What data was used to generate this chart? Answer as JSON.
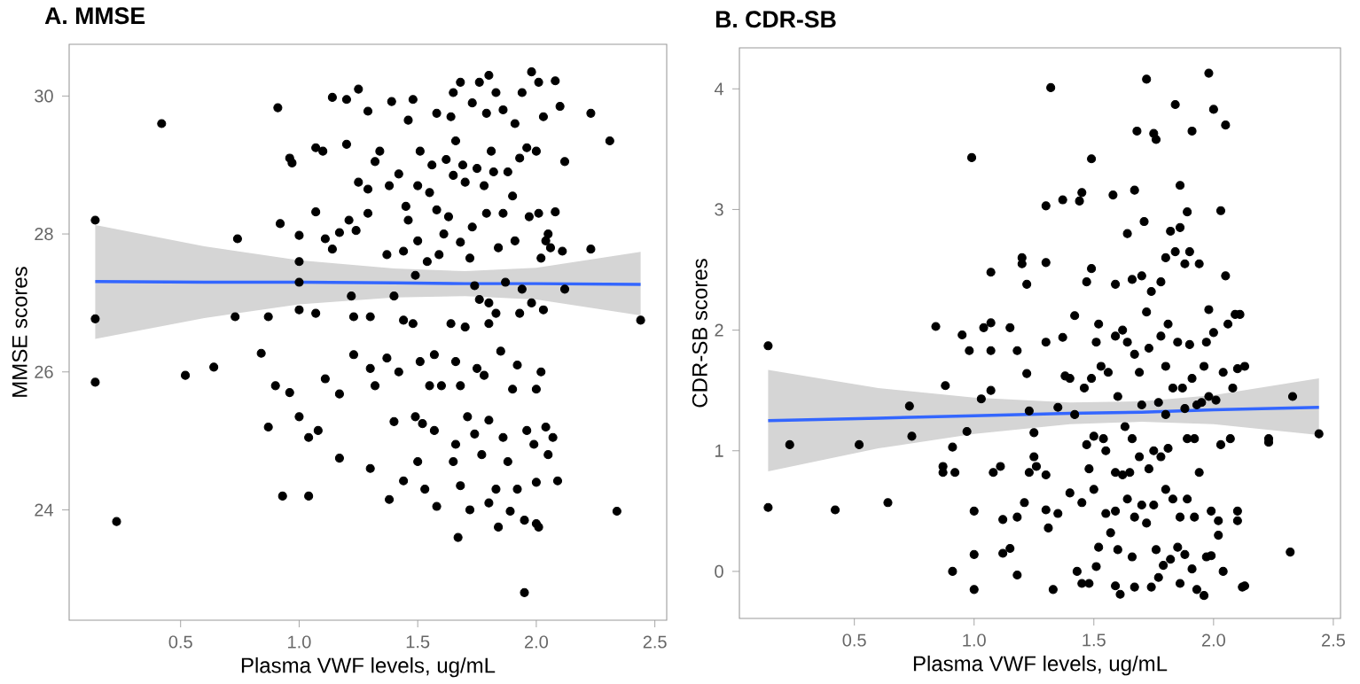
{
  "chart_data": [
    {
      "type": "scatter",
      "title": "A. MMSE",
      "xlabel": "Plasma VWF levels, ug/mL",
      "ylabel": "MMSE scores",
      "xlim": [
        0.03,
        2.55
      ],
      "ylim": [
        22.4,
        30.75
      ],
      "xticks": [
        {
          "value": 0.5,
          "label": "0.5"
        },
        {
          "value": 1.0,
          "label": "1.0"
        },
        {
          "value": 1.5,
          "label": "1.5"
        },
        {
          "value": 2.0,
          "label": "2.0"
        },
        {
          "value": 2.5,
          "label": "2.5"
        }
      ],
      "yticks": [
        24,
        26,
        28,
        30
      ],
      "series": [
        {
          "marker": "circle",
          "color": "#000000",
          "x": [
            0.14,
            0.14,
            0.14,
            0.23,
            0.42,
            0.52,
            0.64,
            0.73,
            0.74,
            0.84,
            0.87,
            0.87,
            0.9,
            0.91,
            0.92,
            0.93,
            0.96,
            0.96,
            0.97,
            1.0,
            1.0,
            1.0,
            1.0,
            1.0,
            1.04,
            1.04,
            1.07,
            1.07,
            1.07,
            1.08,
            1.1,
            1.11,
            1.11,
            1.14,
            1.14,
            1.17,
            1.17,
            1.17,
            1.2,
            1.2,
            1.21,
            1.22,
            1.23,
            1.23,
            1.24,
            1.25,
            1.25,
            1.29,
            1.29,
            1.29,
            1.3,
            1.3,
            1.3,
            1.32,
            1.32,
            1.34,
            1.37,
            1.37,
            1.38,
            1.38,
            1.39,
            1.4,
            1.4,
            1.42,
            1.42,
            1.44,
            1.44,
            1.44,
            1.45,
            1.46,
            1.46,
            1.48,
            1.48,
            1.49,
            1.49,
            1.5,
            1.5,
            1.5,
            1.51,
            1.51,
            1.52,
            1.53,
            1.54,
            1.55,
            1.55,
            1.56,
            1.57,
            1.57,
            1.58,
            1.58,
            1.58,
            1.59,
            1.6,
            1.61,
            1.62,
            1.63,
            1.64,
            1.64,
            1.65,
            1.65,
            1.65,
            1.66,
            1.66,
            1.66,
            1.67,
            1.68,
            1.68,
            1.68,
            1.68,
            1.69,
            1.7,
            1.7,
            1.71,
            1.72,
            1.72,
            1.73,
            1.73,
            1.74,
            1.74,
            1.75,
            1.75,
            1.76,
            1.76,
            1.77,
            1.78,
            1.78,
            1.79,
            1.79,
            1.8,
            1.8,
            1.8,
            1.8,
            1.8,
            1.81,
            1.82,
            1.83,
            1.83,
            1.83,
            1.84,
            1.84,
            1.85,
            1.86,
            1.86,
            1.86,
            1.87,
            1.88,
            1.88,
            1.89,
            1.9,
            1.9,
            1.91,
            1.91,
            1.92,
            1.92,
            1.93,
            1.93,
            1.94,
            1.94,
            1.95,
            1.95,
            1.96,
            1.96,
            1.97,
            1.98,
            1.98,
            1.99,
            2.0,
            2.0,
            2.0,
            2.0,
            2.01,
            2.01,
            2.01,
            2.02,
            2.02,
            2.03,
            2.03,
            2.04,
            2.04,
            2.05,
            2.05,
            2.06,
            2.07,
            2.08,
            2.08,
            2.09,
            2.1,
            2.11,
            2.12,
            2.12,
            2.23,
            2.23,
            2.31,
            2.34,
            2.44
          ],
          "values": [
            28.2,
            26.77,
            25.85,
            23.83,
            29.6,
            25.95,
            26.07,
            26.8,
            27.93,
            26.27,
            26.8,
            25.2,
            25.8,
            29.83,
            28.15,
            24.2,
            29.1,
            25.7,
            29.03,
            27.98,
            27.6,
            27.3,
            26.9,
            25.35,
            24.2,
            25.05,
            29.25,
            28.32,
            26.85,
            25.15,
            29.2,
            27.93,
            25.9,
            27.78,
            29.98,
            28.02,
            25.68,
            24.75,
            29.95,
            29.3,
            28.2,
            27.1,
            26.25,
            26.8,
            28.05,
            30.1,
            28.75,
            29.78,
            28.65,
            28.3,
            26.05,
            24.6,
            26.8,
            25.8,
            29.05,
            29.2,
            27.7,
            26.2,
            24.15,
            28.7,
            29.92,
            25.28,
            27.1,
            26.0,
            28.87,
            24.42,
            27.75,
            26.75,
            28.4,
            29.65,
            28.2,
            26.7,
            29.95,
            25.35,
            27.4,
            28.7,
            27.9,
            24.7,
            29.2,
            26.15,
            25.25,
            24.3,
            27.6,
            28.6,
            25.8,
            29.0,
            25.15,
            26.25,
            29.75,
            28.35,
            24.05,
            27.7,
            25.8,
            28.0,
            29.08,
            28.25,
            29.7,
            26.7,
            30.05,
            28.85,
            24.7,
            29.35,
            26.15,
            24.95,
            23.6,
            30.2,
            27.88,
            25.8,
            24.35,
            29.0,
            26.65,
            28.75,
            25.35,
            27.65,
            24.0,
            29.9,
            28.1,
            27.25,
            25.1,
            26.05,
            28.95,
            30.2,
            27.05,
            24.8,
            28.7,
            25.95,
            29.75,
            28.3,
            30.3,
            27.0,
            26.7,
            25.3,
            24.1,
            29.2,
            28.9,
            30.05,
            26.85,
            24.3,
            27.8,
            23.75,
            26.3,
            29.8,
            28.3,
            25.05,
            27.3,
            28.9,
            24.7,
            23.98,
            25.75,
            28.55,
            29.6,
            27.9,
            26.1,
            24.3,
            29.1,
            26.85,
            30.05,
            27.2,
            23.85,
            22.8,
            25.15,
            29.25,
            28.25,
            30.35,
            27.0,
            24.95,
            29.2,
            25.75,
            24.4,
            23.8,
            30.2,
            28.3,
            23.75,
            27.65,
            26.0,
            29.7,
            26.9,
            27.9,
            25.2,
            28.0,
            24.8,
            27.8,
            25.05,
            30.22,
            28.32,
            24.42,
            29.85,
            27.75,
            27.2,
            29.05,
            29.75,
            27.78,
            29.35,
            23.98,
            26.75
          ]
        },
        {
          "type": "line",
          "marker": "none",
          "color": "#3366ff",
          "x": [
            0.14,
            0.6,
            1.0,
            1.4,
            1.7,
            2.0,
            2.44
          ],
          "values": [
            27.31,
            27.3,
            27.3,
            27.29,
            27.28,
            27.28,
            27.27
          ],
          "lower": [
            26.48,
            26.78,
            26.98,
            27.08,
            27.1,
            27.05,
            26.82
          ],
          "upper": [
            28.13,
            27.82,
            27.62,
            27.5,
            27.46,
            27.51,
            27.74
          ]
        }
      ]
    },
    {
      "type": "scatter",
      "title": "B. CDR-SB",
      "xlabel": "Plasma VWF levels, ug/mL",
      "ylabel": "CDR-SB scores",
      "xlim": [
        0.02,
        2.53
      ],
      "ylim": [
        -0.39,
        4.34
      ],
      "xticks": [
        {
          "value": 0.5,
          "label": "0.5"
        },
        {
          "value": 1.0,
          "label": "1.0"
        },
        {
          "value": 1.5,
          "label": "1.5"
        },
        {
          "value": 2.0,
          "label": "2.0"
        },
        {
          "value": 2.5,
          "label": "2.5"
        }
      ],
      "yticks": [
        0,
        1,
        2,
        3,
        4
      ],
      "series": [
        {
          "marker": "circle",
          "color": "#000000",
          "x": [
            0.14,
            0.14,
            0.23,
            0.42,
            0.52,
            0.64,
            0.73,
            0.74,
            0.84,
            0.87,
            0.87,
            0.88,
            0.91,
            0.91,
            0.92,
            0.95,
            0.97,
            0.98,
            0.99,
            1.0,
            1.0,
            1.0,
            1.03,
            1.04,
            1.07,
            1.07,
            1.07,
            1.07,
            1.08,
            1.11,
            1.12,
            1.12,
            1.15,
            1.15,
            1.18,
            1.18,
            1.18,
            1.21,
            1.2,
            1.2,
            1.22,
            1.22,
            1.23,
            1.23,
            1.25,
            1.25,
            1.26,
            1.3,
            1.3,
            1.3,
            1.3,
            1.3,
            1.31,
            1.32,
            1.33,
            1.35,
            1.35,
            1.37,
            1.37,
            1.38,
            1.4,
            1.4,
            1.42,
            1.42,
            1.43,
            1.44,
            1.45,
            1.45,
            1.45,
            1.46,
            1.47,
            1.47,
            1.48,
            1.48,
            1.49,
            1.49,
            1.49,
            1.5,
            1.5,
            1.51,
            1.51,
            1.52,
            1.52,
            1.53,
            1.54,
            1.55,
            1.55,
            1.56,
            1.57,
            1.58,
            1.59,
            1.59,
            1.59,
            1.59,
            1.59,
            1.6,
            1.6,
            1.61,
            1.62,
            1.62,
            1.63,
            1.64,
            1.64,
            1.64,
            1.65,
            1.66,
            1.66,
            1.66,
            1.67,
            1.67,
            1.67,
            1.67,
            1.68,
            1.69,
            1.69,
            1.7,
            1.7,
            1.7,
            1.71,
            1.72,
            1.72,
            1.72,
            1.73,
            1.73,
            1.74,
            1.74,
            1.75,
            1.75,
            1.75,
            1.76,
            1.76,
            1.77,
            1.77,
            1.78,
            1.78,
            1.78,
            1.79,
            1.8,
            1.8,
            1.8,
            1.8,
            1.81,
            1.81,
            1.82,
            1.82,
            1.83,
            1.83,
            1.84,
            1.84,
            1.85,
            1.85,
            1.86,
            1.86,
            1.86,
            1.86,
            1.87,
            1.88,
            1.88,
            1.88,
            1.89,
            1.89,
            1.89,
            1.9,
            1.9,
            1.91,
            1.91,
            1.91,
            1.92,
            1.92,
            1.93,
            1.93,
            1.94,
            1.94,
            1.95,
            1.96,
            1.96,
            1.97,
            1.97,
            1.98,
            1.98,
            1.98,
            1.99,
            1.99,
            2.0,
            2.0,
            2.01,
            2.02,
            2.02,
            2.03,
            2.03,
            2.04,
            2.04,
            2.05,
            2.05,
            2.06,
            2.07,
            2.08,
            2.09,
            2.1,
            2.1,
            2.1,
            2.11,
            2.12,
            2.13,
            2.13,
            2.23,
            2.23,
            2.32,
            2.33,
            2.44
          ],
          "values": [
            1.87,
            0.53,
            1.05,
            0.51,
            1.05,
            0.57,
            1.37,
            1.12,
            2.03,
            0.87,
            0.82,
            1.54,
            1.03,
            0.0,
            0.82,
            1.96,
            1.16,
            1.83,
            3.43,
            0.5,
            0.14,
            -0.15,
            1.43,
            2.02,
            2.06,
            2.48,
            1.5,
            1.83,
            0.82,
            0.87,
            0.43,
            0.15,
            0.19,
            2.02,
            0.45,
            -0.03,
            1.83,
            0.57,
            2.6,
            2.55,
            2.38,
            1.64,
            1.33,
            0.82,
            1.15,
            0.95,
            0.87,
            3.03,
            2.56,
            1.9,
            0.8,
            0.51,
            0.36,
            4.01,
            -0.15,
            1.36,
            0.48,
            3.08,
            1.94,
            1.62,
            0.65,
            1.6,
            2.12,
            1.3,
            0.0,
            3.07,
            3.14,
            -0.1,
            0.57,
            1.52,
            2.4,
            1.05,
            0.85,
            -0.1,
            3.42,
            2.51,
            1.6,
            1.12,
            0.68,
            1.9,
            0.04,
            2.05,
            0.2,
            1.7,
            1.1,
            1.0,
            0.48,
            1.65,
            0.32,
            3.12,
            1.95,
            2.38,
            0.82,
            0.5,
            -0.12,
            1.45,
            0.18,
            -0.19,
            2.0,
            0.8,
            1.2,
            2.8,
            1.9,
            0.6,
            0.82,
            2.42,
            1.1,
            0.12,
            3.16,
            1.8,
            0.45,
            -0.13,
            3.65,
            1.65,
            0.95,
            2.45,
            1.38,
            0.55,
            2.9,
            4.08,
            2.15,
            0.4,
            1.85,
            0.85,
            2.32,
            -0.13,
            3.63,
            1.0,
            0.55,
            3.58,
            0.18,
            1.4,
            -0.05,
            2.4,
            1.95,
            0.95,
            0.05,
            2.6,
            1.7,
            1.3,
            0.68,
            2.05,
            1.02,
            2.82,
            0.1,
            1.52,
            0.6,
            3.87,
            2.65,
            1.9,
            0.2,
            3.2,
            2.85,
            0.45,
            -0.1,
            1.52,
            2.55,
            1.35,
            0.14,
            2.98,
            1.1,
            0.6,
            1.88,
            2.65,
            3.65,
            1.6,
            0.02,
            0.45,
            1.1,
            1.38,
            -0.15,
            2.55,
            0.82,
            1.4,
            1.7,
            -0.2,
            1.9,
            0.12,
            4.13,
            2.17,
            1.45,
            0.5,
            0.13,
            3.83,
            1.98,
            1.42,
            0.3,
            0.42,
            2.99,
            1.05,
            1.65,
            0.0,
            3.7,
            2.45,
            2.05,
            1.1,
            1.52,
            2.13,
            1.68,
            0.5,
            0.42,
            2.13,
            -0.13,
            1.7,
            -0.12,
            1.1,
            1.07,
            0.16,
            1.45,
            1.14
          ]
        },
        {
          "type": "line",
          "marker": "none",
          "color": "#3366ff",
          "x": [
            0.14,
            0.6,
            1.0,
            1.4,
            1.7,
            2.0,
            2.44
          ],
          "values": [
            1.25,
            1.27,
            1.29,
            1.31,
            1.32,
            1.34,
            1.36
          ],
          "lower": [
            0.83,
            1.02,
            1.14,
            1.22,
            1.24,
            1.22,
            1.13
          ],
          "upper": [
            1.67,
            1.52,
            1.44,
            1.4,
            1.41,
            1.46,
            1.6
          ]
        }
      ]
    }
  ]
}
